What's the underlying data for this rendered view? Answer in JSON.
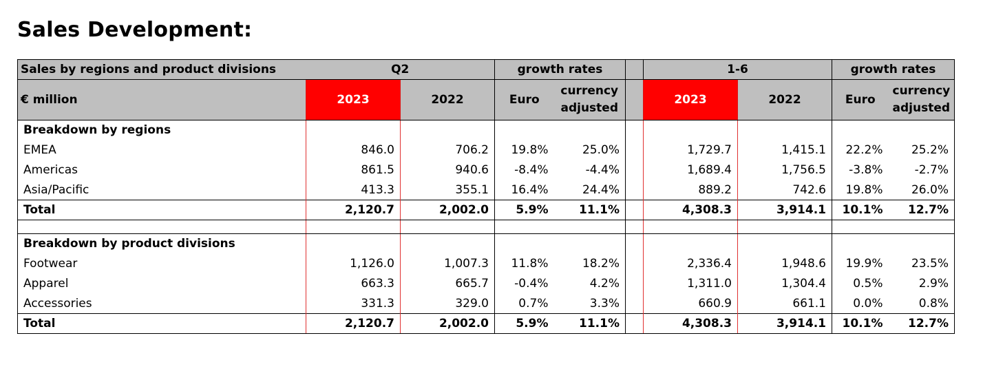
{
  "title": "Sales Development:",
  "header": {
    "table_label": "Sales by regions and product divisions",
    "unit_label": "€ million",
    "q2_label": "Q2",
    "h1_label": "1-6",
    "growth_label": "growth rates",
    "year_current": "2023",
    "year_previous": "2022",
    "euro_label": "Euro",
    "currency_label_1": "currency",
    "currency_label_2": "adjusted"
  },
  "regions": {
    "section_label": "Breakdown by regions",
    "rows": [
      {
        "label": "EMEA",
        "q2_2023": "846.0",
        "q2_2022": "706.2",
        "q2_euro": "19.8%",
        "q2_ca": "25.0%",
        "h1_2023": "1,729.7",
        "h1_2022": "1,415.1",
        "h1_euro": "22.2%",
        "h1_ca": "25.2%"
      },
      {
        "label": "Americas",
        "q2_2023": "861.5",
        "q2_2022": "940.6",
        "q2_euro": "-8.4%",
        "q2_ca": "-4.4%",
        "h1_2023": "1,689.4",
        "h1_2022": "1,756.5",
        "h1_euro": "-3.8%",
        "h1_ca": "-2.7%"
      },
      {
        "label": "Asia/Pacific",
        "q2_2023": "413.3",
        "q2_2022": "355.1",
        "q2_euro": "16.4%",
        "q2_ca": "24.4%",
        "h1_2023": "889.2",
        "h1_2022": "742.6",
        "h1_euro": "19.8%",
        "h1_ca": "26.0%"
      }
    ],
    "total": {
      "label": "Total",
      "q2_2023": "2,120.7",
      "q2_2022": "2,002.0",
      "q2_euro": "5.9%",
      "q2_ca": "11.1%",
      "h1_2023": "4,308.3",
      "h1_2022": "3,914.1",
      "h1_euro": "10.1%",
      "h1_ca": "12.7%"
    }
  },
  "divisions": {
    "section_label": "Breakdown by product divisions",
    "rows": [
      {
        "label": "Footwear",
        "q2_2023": "1,126.0",
        "q2_2022": "1,007.3",
        "q2_euro": "11.8%",
        "q2_ca": "18.2%",
        "h1_2023": "2,336.4",
        "h1_2022": "1,948.6",
        "h1_euro": "19.9%",
        "h1_ca": "23.5%"
      },
      {
        "label": "Apparel",
        "q2_2023": "663.3",
        "q2_2022": "665.7",
        "q2_euro": "-0.4%",
        "q2_ca": "4.2%",
        "h1_2023": "1,311.0",
        "h1_2022": "1,304.4",
        "h1_euro": "0.5%",
        "h1_ca": "2.9%"
      },
      {
        "label": "Accessories",
        "q2_2023": "331.3",
        "q2_2022": "329.0",
        "q2_euro": "0.7%",
        "q2_ca": "3.3%",
        "h1_2023": "660.9",
        "h1_2022": "661.1",
        "h1_euro": "0.0%",
        "h1_ca": "0.8%"
      }
    ],
    "total": {
      "label": "Total",
      "q2_2023": "2,120.7",
      "q2_2022": "2,002.0",
      "q2_euro": "5.9%",
      "q2_ca": "11.1%",
      "h1_2023": "4,308.3",
      "h1_2022": "3,914.1",
      "h1_euro": "10.1%",
      "h1_ca": "12.7%"
    }
  }
}
